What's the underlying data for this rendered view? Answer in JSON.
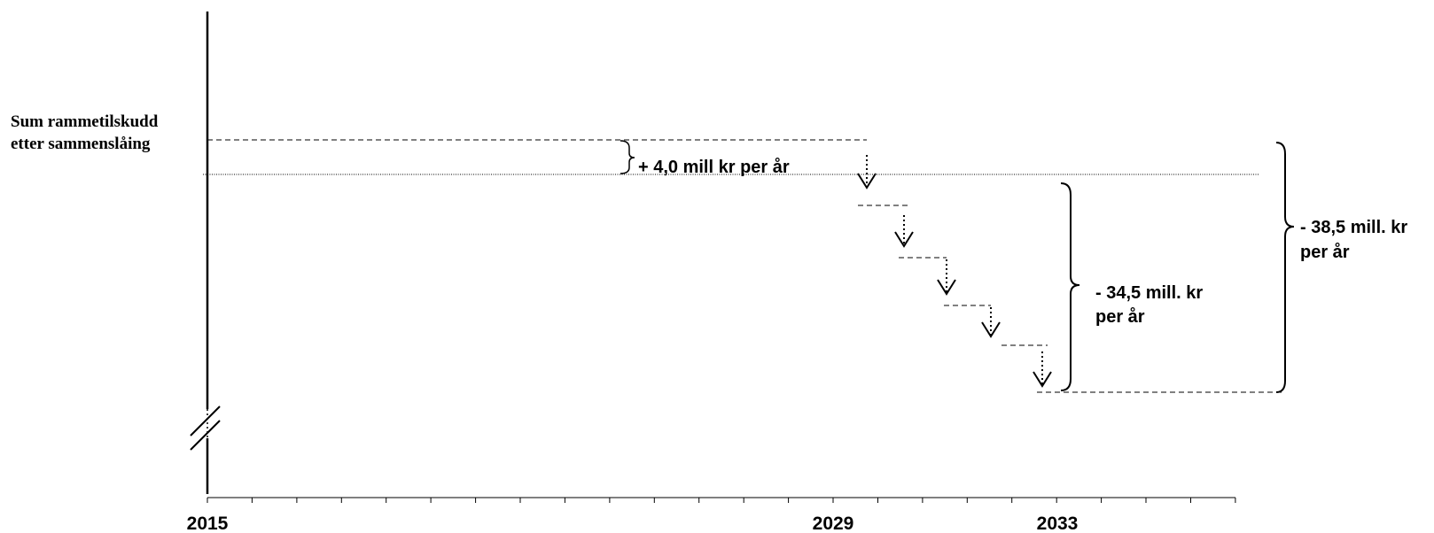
{
  "chart_data": {
    "type": "diagram",
    "left_label": {
      "line1": "Sum rammetilskudd",
      "line2": "etter sammenslåing"
    },
    "x_axis": {
      "tick_labels": [
        "2015",
        "2029",
        "2033"
      ]
    },
    "annotations": {
      "increase": "+ 4,0 mill kr per år",
      "step_total": {
        "line1": "- 34,5 mill. kr",
        "line2": "per år"
      },
      "total": {
        "line1": "- 38,5 mill. kr",
        "line2": "per år"
      }
    },
    "step_down_count": 5
  }
}
